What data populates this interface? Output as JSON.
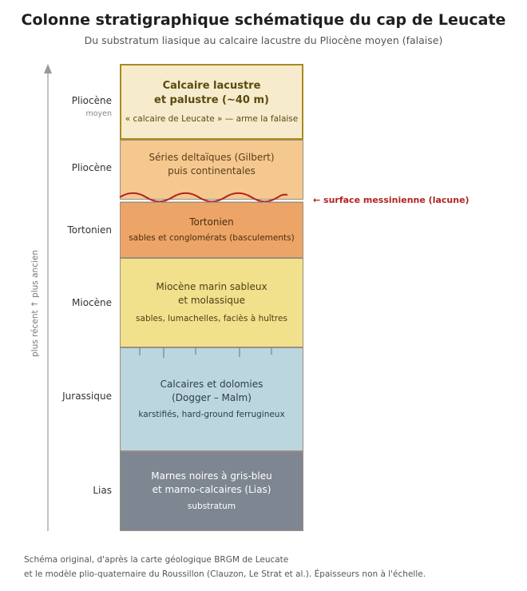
{
  "title": "Colonne stratigraphique schématique du cap de Leucate",
  "subtitle": "Du substratum liasique au calcaire lacustre du Pliocène moyen (falaise)",
  "axis_label": "plus récent ↑ plus ancien",
  "unconformity": "← surface messinienne (lacune)",
  "layers": [
    {
      "age": "Pliocène",
      "age_sub": "moyen",
      "name": "Calcaire lacustre\net palustre (~40 m)",
      "detail": "« calcaire de Leucate » — arme la falaise",
      "fill": "#f7ebcd",
      "text_color": "#5a4a0e"
    },
    {
      "age": "Pliocène",
      "age_sub": "",
      "name": "Séries deltaïques (Gilbert)\npuis continentales",
      "detail": "",
      "fill": "#f5c88f",
      "text_color": "#5a3d1a"
    },
    {
      "age": "Tortonien",
      "age_sub": "",
      "name": "Tortonien",
      "detail": "sables et conglomérats (basculements)",
      "fill": "#eca566",
      "text_color": "#4a2d12"
    },
    {
      "age": "Miocène",
      "age_sub": "",
      "name": "Miocène marin sableux\net molassique",
      "detail": "sables, lumachelles, faciès à huîtres",
      "fill": "#f1e08c",
      "text_color": "#4d4214"
    },
    {
      "age": "Jurassique",
      "age_sub": "",
      "name": "Calcaires et dolomies\n(Dogger – Malm)",
      "detail": "karstifiés, hard-ground ferrugineux",
      "fill": "#bcd6df",
      "text_color": "#2c3e46"
    },
    {
      "age": "Lias",
      "age_sub": "",
      "name": "Marnes noires à gris-bleu\net marno-calcaires (Lias)",
      "detail": "substratum",
      "fill": "#7e8691",
      "text_color": "#ffffff"
    }
  ],
  "footer_line1": "Schéma original, d'après la carte géologique BRGM de Leucate",
  "footer_line2": "et le modèle plio-quaternaire du Roussillon (Clauzon, Le Strat et al.). Épaisseurs non à l'échelle.",
  "colors": {
    "unconformity_line": "#b22222",
    "top_border": "#a88b1e",
    "axis": "#999999"
  }
}
